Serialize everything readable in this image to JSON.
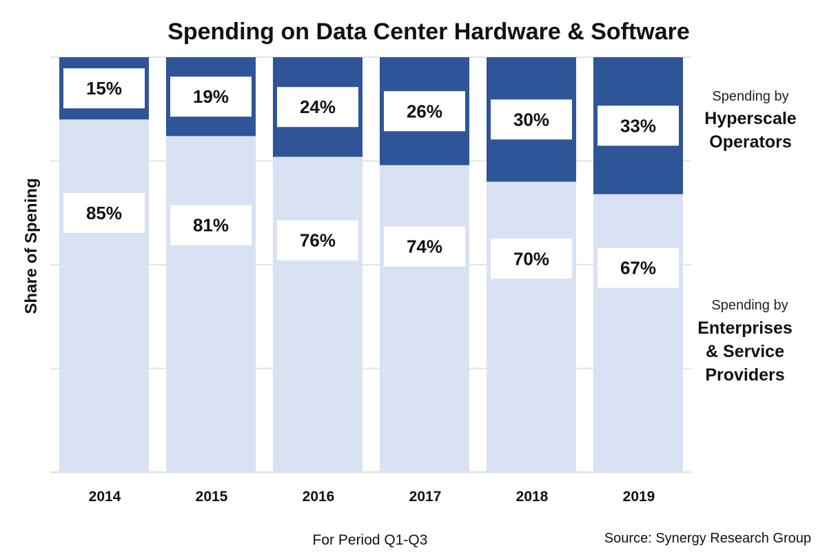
{
  "chart_data": {
    "type": "bar",
    "stacked": true,
    "percent_stacked": true,
    "title": "Spending on Data Center Hardware & Software",
    "xlabel": "For Period Q1-Q3",
    "ylabel": "Share of Spening",
    "ylim": [
      0,
      100
    ],
    "grid": true,
    "gridline_values": [
      25,
      50,
      75
    ],
    "categories": [
      "2014",
      "2015",
      "2016",
      "2017",
      "2018",
      "2019"
    ],
    "series": [
      {
        "name": "Spending by Enterprises & Service Providers",
        "legend_small": "Spending by",
        "legend_lines": [
          "Enterprises",
          "& Service",
          "Providers"
        ],
        "position": "bottom",
        "color": "#D9E2F2",
        "values": [
          85,
          81,
          76,
          74,
          70,
          67
        ],
        "labels": [
          "85%",
          "81%",
          "76%",
          "74%",
          "70%",
          "67%"
        ]
      },
      {
        "name": "Spending by Hyperscale Operators",
        "legend_small": "Spending by",
        "legend_lines": [
          "Hyperscale",
          "Operators"
        ],
        "position": "top",
        "color": "#2E5597",
        "values": [
          15,
          19,
          24,
          26,
          30,
          33
        ],
        "labels": [
          "15%",
          "19%",
          "24%",
          "26%",
          "30%",
          "33%"
        ]
      }
    ],
    "legend_placement": "right",
    "source": "Source: Synergy Research Group"
  },
  "colors": {
    "gridline": "#E3E3E3",
    "label_box": "#FFFFFF"
  }
}
